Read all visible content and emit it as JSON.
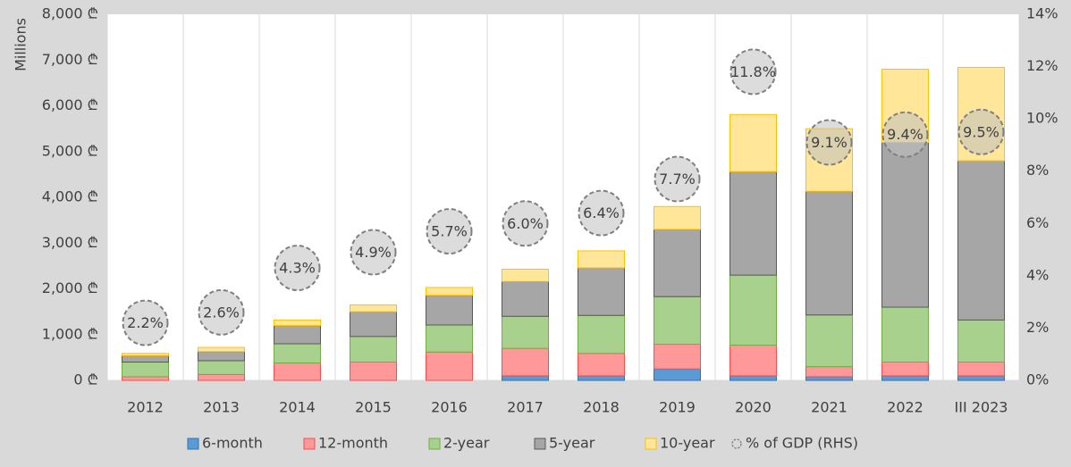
{
  "chart_data": {
    "type": "stacked_bar",
    "y_label": "Millions",
    "categories": [
      "2012",
      "2013",
      "2014",
      "2015",
      "2016",
      "2017",
      "2018",
      "2019",
      "2020",
      "2021",
      "2022",
      "III 2023"
    ],
    "series": [
      {
        "name": "6-month",
        "color": "#5b9bd5",
        "edgecolor": "#2e75b6",
        "values": [
          0,
          0,
          0,
          0,
          0,
          100,
          100,
          250,
          100,
          80,
          100,
          100
        ]
      },
      {
        "name": "12-month",
        "color": "#ff9999",
        "edgecolor": "#ff4b4b",
        "values": [
          80,
          130,
          380,
          400,
          620,
          600,
          490,
          540,
          670,
          220,
          300,
          300
        ]
      },
      {
        "name": "2-year",
        "color": "#a9d18e",
        "edgecolor": "#70ad47",
        "values": [
          320,
          300,
          420,
          560,
          590,
          700,
          830,
          1040,
          1530,
          1130,
          1200,
          920
        ]
      },
      {
        "name": "5-year",
        "color": "#a6a6a6",
        "edgecolor": "#595959",
        "values": [
          140,
          200,
          400,
          540,
          650,
          760,
          1040,
          1470,
          2260,
          2700,
          3600,
          3480
        ]
      },
      {
        "name": "10-year",
        "color": "#ffe699",
        "edgecolor": "#ffc000",
        "values": [
          50,
          90,
          120,
          150,
          170,
          270,
          370,
          500,
          1250,
          1370,
          1600,
          2040
        ]
      },
      {
        "name": "% of GDP (RHS)",
        "type": "circle",
        "axis": "y2",
        "color": "rgba(191,191,191,0.55)",
        "edgecolor": "#7f7f7f",
        "values": [
          2.2,
          2.6,
          4.3,
          4.9,
          5.7,
          6.0,
          6.4,
          7.7,
          11.8,
          9.1,
          9.4,
          9.5
        ],
        "value_labels": [
          "2.2%",
          "2.6%",
          "4.3%",
          "4.9%",
          "5.7%",
          "6.0%",
          "6.4%",
          "7.7%",
          "11.8%",
          "9.1%",
          "9.4%",
          "9.5%"
        ]
      }
    ],
    "ylim": [
      0,
      8000
    ],
    "yticks": [
      {
        "value": 0,
        "label": "0 ₾"
      },
      {
        "value": 1000,
        "label": "1,000 ₾"
      },
      {
        "value": 2000,
        "label": "2,000 ₾"
      },
      {
        "value": 3000,
        "label": "3,000 ₾"
      },
      {
        "value": 4000,
        "label": "4,000 ₾"
      },
      {
        "value": 5000,
        "label": "5,000 ₾"
      },
      {
        "value": 6000,
        "label": "6,000 ₾"
      },
      {
        "value": 7000,
        "label": "7,000 ₾"
      },
      {
        "value": 8000,
        "label": "8,000 ₾"
      }
    ],
    "y2lim": [
      0,
      14
    ],
    "y2ticks": [
      {
        "value": 0,
        "label": "0%"
      },
      {
        "value": 2,
        "label": "2%"
      },
      {
        "value": 4,
        "label": "4%"
      },
      {
        "value": 6,
        "label": "6%"
      },
      {
        "value": 8,
        "label": "8%"
      },
      {
        "value": 10,
        "label": "10%"
      },
      {
        "value": 12,
        "label": "12%"
      },
      {
        "value": 14,
        "label": "14%"
      }
    ],
    "legend": "bottom"
  }
}
